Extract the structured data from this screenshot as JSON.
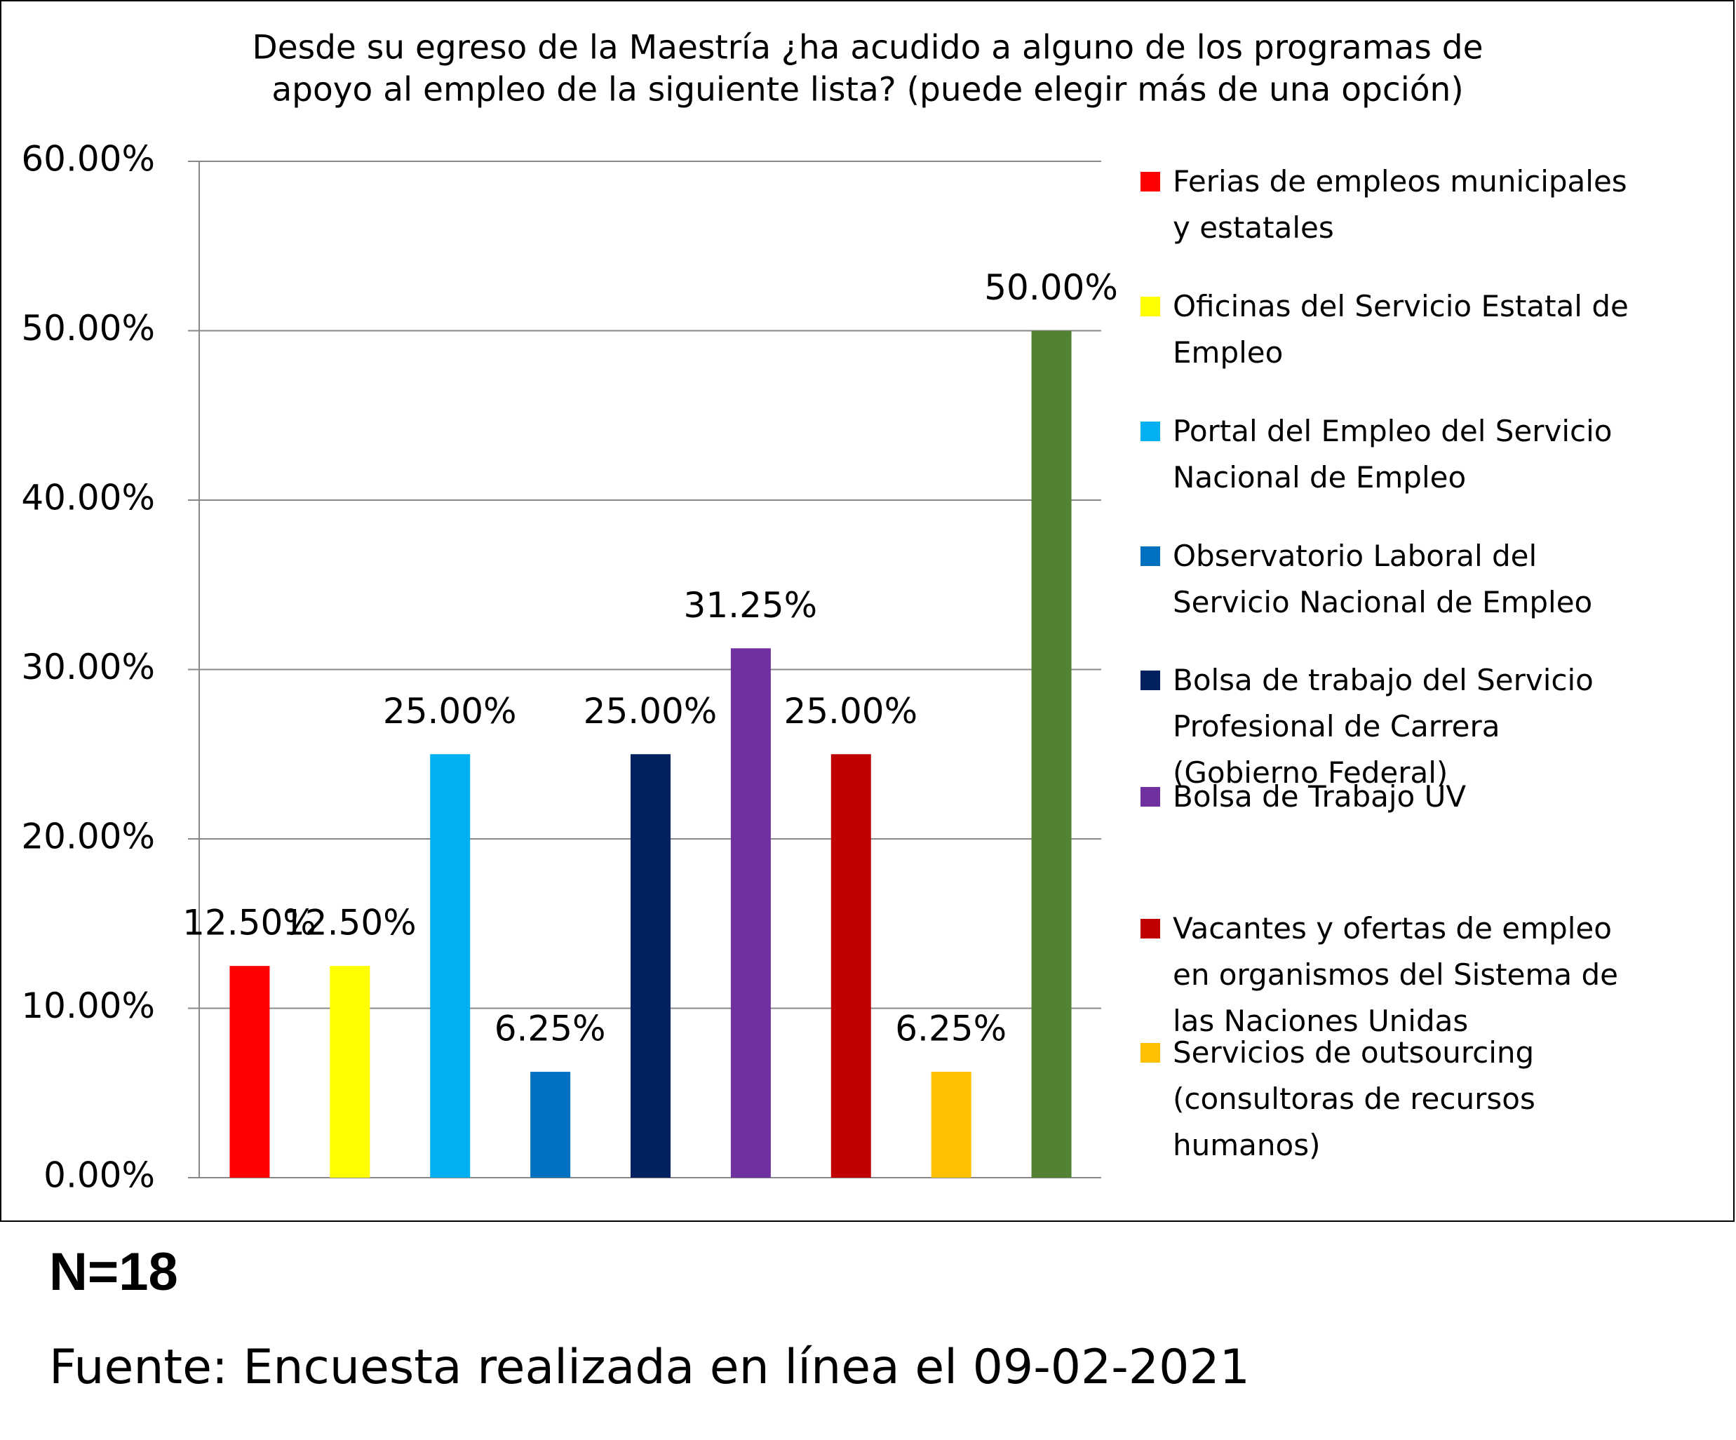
{
  "chart_data": {
    "type": "bar",
    "title": [
      "Desde su egreso de la Maestría ¿ha acudido a alguno de los programas de",
      "apoyo al empleo de la siguiente lista? (puede elegir más de una opción)"
    ],
    "categories": [
      "Ferias de empleos municipales y estatales",
      "Oficinas del Servicio Estatal de Empleo",
      "Portal del Empleo del Servicio Nacional de Empleo",
      "Observatorio Laboral del Servicio Nacional de Empleo",
      "Bolsa de trabajo del Servicio Profesional de Carrera (Gobierno Federal)",
      "Bolsa de Trabajo UV",
      "Vacantes y ofertas de empleo en organismos del Sistema de las Naciones Unidas",
      "Servicios de outsourcing (consultoras de recursos humanos)",
      null
    ],
    "values": [
      12.5,
      12.5,
      25,
      6.25,
      25,
      31.25,
      25,
      6.25,
      50
    ],
    "value_labels": [
      "12.50%",
      "12.50%",
      "25.00%",
      "6.25%",
      "25.00%",
      "31.25%",
      "25.00%",
      "6.25%",
      "50.00%"
    ],
    "colors": [
      "#ff0000",
      "#ffff00",
      "#00b0f0",
      "#0070c0",
      "#002060",
      "#7030a0",
      "#c00000",
      "#ffc000",
      "#548235"
    ],
    "ylim": [
      0,
      60
    ],
    "yticks": [
      {
        "value": 0,
        "label": "0.00%"
      },
      {
        "value": 10,
        "label": "10.00%"
      },
      {
        "value": 20,
        "label": "20.00%"
      },
      {
        "value": 30,
        "label": "30.00%"
      },
      {
        "value": 40,
        "label": "40.00%"
      },
      {
        "value": 50,
        "label": "50.00%"
      },
      {
        "value": 60,
        "label": "60.00%"
      }
    ],
    "grid": true,
    "legend": "right"
  },
  "footer": {
    "n": "N=18",
    "source": "Fuente: Encuesta realizada en línea el 09-02-2021"
  }
}
